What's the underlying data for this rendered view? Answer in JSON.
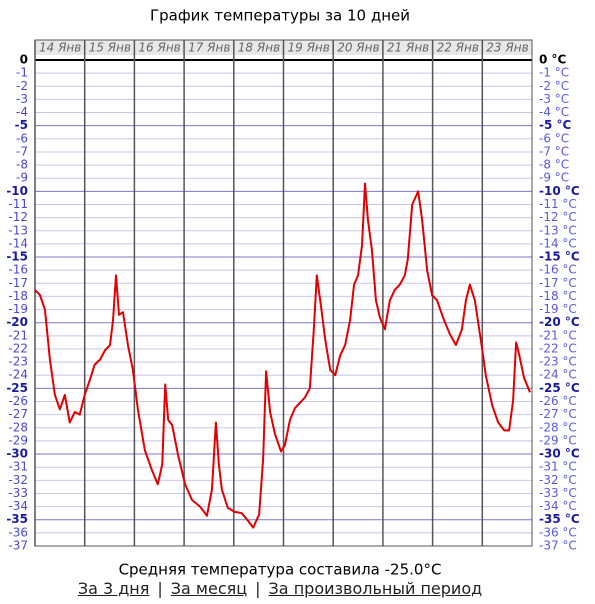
{
  "chart_data": {
    "type": "line",
    "title": "График температуры за 10 дней",
    "xlim": [
      0,
      10
    ],
    "xticks": [
      {
        "value": 0,
        "label": "14 Янв"
      },
      {
        "value": 1,
        "label": "15 Янв"
      },
      {
        "value": 2,
        "label": "16 Янв"
      },
      {
        "value": 3,
        "label": "17 Янв"
      },
      {
        "value": 4,
        "label": "18 Янв"
      },
      {
        "value": 5,
        "label": "19 Янв"
      },
      {
        "value": 6,
        "label": "20 Янв"
      },
      {
        "value": 7,
        "label": "21 Янв"
      },
      {
        "value": 8,
        "label": "22 Янв"
      },
      {
        "value": 9,
        "label": "23 Янв"
      }
    ],
    "ylim": [
      -37,
      0
    ],
    "yticks": [
      0,
      -1,
      -2,
      -3,
      -4,
      -5,
      -6,
      -7,
      -8,
      -9,
      -10,
      -11,
      -12,
      -13,
      -14,
      -15,
      -16,
      -17,
      -18,
      -19,
      -20,
      -21,
      -22,
      -23,
      -24,
      -25,
      -26,
      -27,
      -28,
      -29,
      -30,
      -31,
      -32,
      -33,
      -34,
      -35,
      -36,
      -37
    ],
    "y2lim": [
      -37,
      0
    ],
    "y2ticks": [
      {
        "value": 0,
        "label": "0 °C"
      },
      {
        "value": -1,
        "label": "-1 °C"
      },
      {
        "value": -2,
        "label": "-2 °C"
      },
      {
        "value": -3,
        "label": "-3 °C"
      },
      {
        "value": -4,
        "label": "-4 °C"
      },
      {
        "value": -5,
        "label": "-5 °C"
      },
      {
        "value": -6,
        "label": "-6 °C"
      },
      {
        "value": -7,
        "label": "-7 °C"
      },
      {
        "value": -8,
        "label": "-8 °C"
      },
      {
        "value": -9,
        "label": "-9 °C"
      },
      {
        "value": -10,
        "label": "-10 °C"
      },
      {
        "value": -11,
        "label": "-11 °C"
      },
      {
        "value": -12,
        "label": "-12 °C"
      },
      {
        "value": -13,
        "label": "-13 °C"
      },
      {
        "value": -14,
        "label": "-14 °C"
      },
      {
        "value": -15,
        "label": "-15 °C"
      },
      {
        "value": -16,
        "label": "-16 °C"
      },
      {
        "value": -17,
        "label": "-17 °C"
      },
      {
        "value": -18,
        "label": "-18 °C"
      },
      {
        "value": -19,
        "label": "-19 °C"
      },
      {
        "value": -20,
        "label": "-20 °C"
      },
      {
        "value": -21,
        "label": "-21 °C"
      },
      {
        "value": -22,
        "label": "-22 °C"
      },
      {
        "value": -23,
        "label": "-23 °C"
      },
      {
        "value": -24,
        "label": "-24 °C"
      },
      {
        "value": -25,
        "label": "-25 °C"
      },
      {
        "value": -26,
        "label": "-26 °C"
      },
      {
        "value": -27,
        "label": "-27 °C"
      },
      {
        "value": -28,
        "label": "-28 °C"
      },
      {
        "value": -29,
        "label": "-29 °C"
      },
      {
        "value": -30,
        "label": "-30 °C"
      },
      {
        "value": -31,
        "label": "-31 °C"
      },
      {
        "value": -32,
        "label": "-32 °C"
      },
      {
        "value": -33,
        "label": "-33 °C"
      },
      {
        "value": -34,
        "label": "-34 °C"
      },
      {
        "value": -35,
        "label": "-35 °C"
      },
      {
        "value": -36,
        "label": "-36 °C"
      },
      {
        "value": -37,
        "label": "-37 °C"
      }
    ],
    "grid": true,
    "series": [
      {
        "color": "#e00000",
        "x": [
          0,
          0.1,
          0.2,
          0.3,
          0.4,
          0.5,
          0.6,
          0.7,
          0.8,
          0.9,
          1.0,
          1.1,
          1.2,
          1.31,
          1.41,
          1.51,
          1.57,
          1.63,
          1.69,
          1.77,
          1.87,
          1.97,
          2.07,
          2.21,
          2.35,
          2.47,
          2.56,
          2.62,
          2.68,
          2.76,
          2.88,
          3.02,
          3.16,
          3.32,
          3.46,
          3.56,
          3.64,
          3.7,
          3.76,
          3.88,
          4.02,
          4.16,
          4.27,
          4.39,
          4.51,
          4.59,
          4.65,
          4.73,
          4.83,
          4.95,
          5.03,
          5.13,
          5.23,
          5.33,
          5.43,
          5.53,
          5.61,
          5.67,
          5.75,
          5.84,
          5.94,
          6.04,
          6.14,
          6.24,
          6.34,
          6.42,
          6.5,
          6.58,
          6.64,
          6.7,
          6.78,
          6.86,
          6.94,
          7.04,
          7.14,
          7.24,
          7.34,
          7.44,
          7.5,
          7.59,
          7.71,
          7.79,
          7.89,
          7.99,
          8.09,
          8.21,
          8.35,
          8.47,
          8.59,
          8.67,
          8.75,
          8.85,
          8.97,
          9.07,
          9.2,
          9.32,
          9.44,
          9.54,
          9.62,
          9.68,
          9.74,
          9.84,
          9.96
        ],
        "values": [
          -17.5,
          -17.9,
          -19,
          -22.8,
          -25.5,
          -26.6,
          -25.5,
          -27.6,
          -26.8,
          -27,
          -25.5,
          -24.4,
          -23.2,
          -22.8,
          -22.1,
          -21.7,
          -19.8,
          -16.4,
          -19.4,
          -19.2,
          -21.7,
          -23.6,
          -26.6,
          -29.7,
          -31.2,
          -32.3,
          -30.8,
          -24.7,
          -27.4,
          -27.8,
          -30.1,
          -32.3,
          -33.5,
          -34,
          -34.7,
          -32.7,
          -27.6,
          -30.8,
          -32.7,
          -34.1,
          -34.4,
          -34.5,
          -35,
          -35.6,
          -34.6,
          -30.4,
          -23.7,
          -26.8,
          -28.5,
          -29.8,
          -29.3,
          -27.4,
          -26.5,
          -26.1,
          -25.7,
          -25,
          -20.5,
          -16.4,
          -18.6,
          -21.3,
          -23.6,
          -24,
          -22.5,
          -21.7,
          -19.8,
          -17.1,
          -16.4,
          -14.1,
          -9.4,
          -12.2,
          -14.5,
          -18.3,
          -19.6,
          -20.5,
          -18.3,
          -17.5,
          -17.1,
          -16.4,
          -15.2,
          -11,
          -10,
          -12.2,
          -16,
          -17.9,
          -18.3,
          -19.6,
          -20.9,
          -21.7,
          -20.5,
          -18.3,
          -17.1,
          -18.3,
          -21.3,
          -24,
          -26.3,
          -27.6,
          -28.2,
          -28.2,
          -25.9,
          -21.5,
          -22.4,
          -24.2,
          -25.3
        ]
      }
    ],
    "annotation": "Средняя температура составила -25.0°C"
  },
  "links": [
    "За 3 дня",
    "За месяц",
    "За произвольный период"
  ],
  "separator": "|"
}
